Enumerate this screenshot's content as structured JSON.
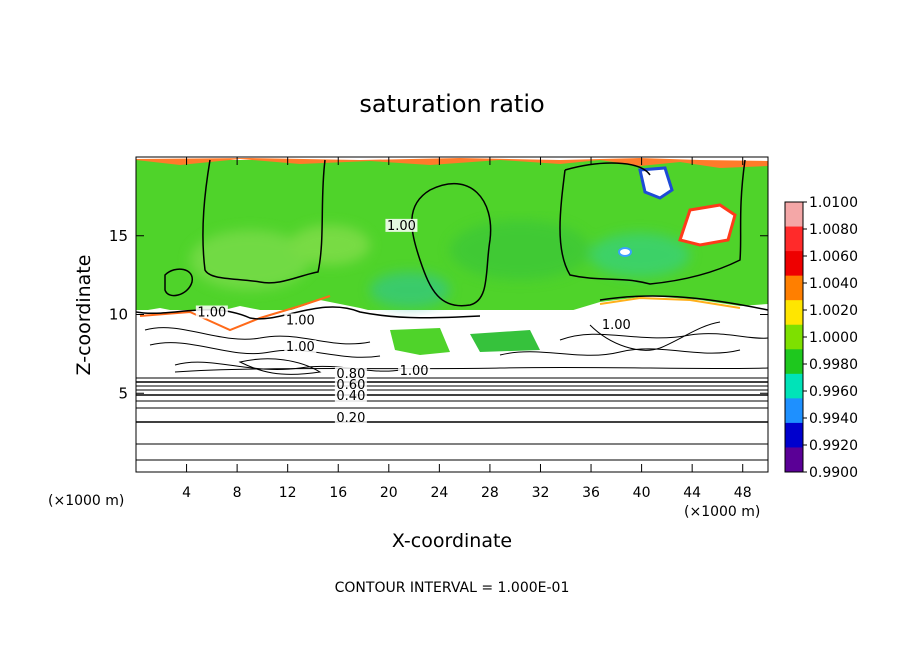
{
  "chart_data": {
    "type": "heatmap",
    "title": "saturation ratio",
    "xlabel": "X-coordinate",
    "ylabel": "Z-coordinate",
    "x_unit_left": "(×1000 m)",
    "x_unit_right": "(×1000 m)",
    "footer": "CONTOUR INTERVAL = 1.000E-01",
    "xlim": [
      0,
      50
    ],
    "ylim": [
      0,
      20
    ],
    "x_ticks": [
      "4",
      "8",
      "12",
      "16",
      "20",
      "24",
      "28",
      "32",
      "36",
      "40",
      "44",
      "48"
    ],
    "y_ticks": [
      "5",
      "10",
      "15"
    ],
    "contour_labels": [
      {
        "text": "1.00",
        "x": 21,
        "y": 15.5
      },
      {
        "text": "1.00",
        "x": 6,
        "y": 10.0
      },
      {
        "text": "1.00",
        "x": 13,
        "y": 9.5
      },
      {
        "text": "1.00",
        "x": 13,
        "y": 7.8
      },
      {
        "text": "1.00",
        "x": 22,
        "y": 6.3
      },
      {
        "text": "1.00",
        "x": 38,
        "y": 9.2
      },
      {
        "text": "0.80",
        "x": 17,
        "y": 6.1
      },
      {
        "text": "0.60",
        "x": 17,
        "y": 5.4
      },
      {
        "text": "0.40",
        "x": 17,
        "y": 4.7
      },
      {
        "text": "0.20",
        "x": 17,
        "y": 3.3
      }
    ],
    "colorbar": {
      "labels": [
        "1.0100",
        "1.0080",
        "1.0060",
        "1.0040",
        "1.0020",
        "1.0000",
        "0.9980",
        "0.9960",
        "0.9940",
        "0.9920",
        "0.9900"
      ],
      "colors": [
        "#f4a7a7",
        "#ff2a2a",
        "#ee0000",
        "#ff7f00",
        "#ffe600",
        "#7ee000",
        "#1ec81e",
        "#00e3b8",
        "#1e90ff",
        "#0000cd",
        "#5a0096"
      ]
    }
  }
}
